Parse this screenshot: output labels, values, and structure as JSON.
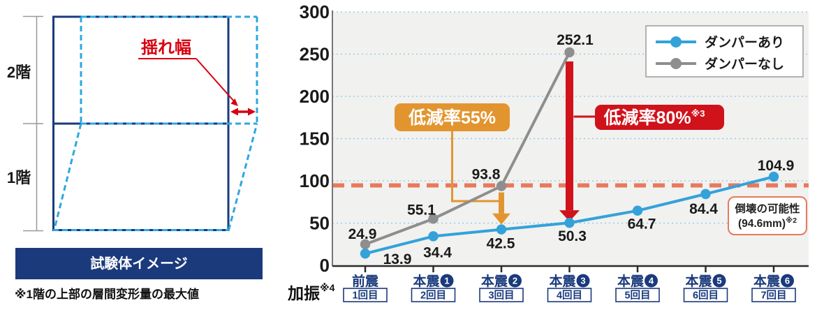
{
  "diagram": {
    "floor2_label": "2階",
    "floor1_label": "1階",
    "sway_label": "揺れ幅",
    "caption": "試験体イメージ",
    "note": "※1階の上部の層間変形量の最大値",
    "colors": {
      "navy": "#1a3a7c",
      "deformed_blue": "#2ea7e0",
      "red": "#d7000f"
    }
  },
  "chart_data": {
    "type": "line",
    "title": "",
    "ylim": [
      0,
      300
    ],
    "yticks": [
      0,
      50,
      100,
      150,
      200,
      250,
      300
    ],
    "grid": "horizontal dotted blue lines",
    "legend_position": "top-right",
    "x_prefix": {
      "label": "加振",
      "sup": "※4"
    },
    "categories": [
      {
        "main": "前震",
        "num": "",
        "sub": "1回目"
      },
      {
        "main": "本震",
        "num": "1",
        "sub": "2回目"
      },
      {
        "main": "本震",
        "num": "2",
        "sub": "3回目"
      },
      {
        "main": "本震",
        "num": "3",
        "sub": "4回目"
      },
      {
        "main": "本震",
        "num": "4",
        "sub": "5回目"
      },
      {
        "main": "本震",
        "num": "5",
        "sub": "6回目"
      },
      {
        "main": "本震",
        "num": "6",
        "sub": "7回目"
      }
    ],
    "series": [
      {
        "name": "ダンパーあり",
        "color": "#33a2d9",
        "values": [
          13.9,
          34.4,
          42.5,
          50.3,
          64.7,
          84.4,
          104.9
        ],
        "label_offsets": [
          [
            46,
            15
          ],
          [
            6,
            30
          ],
          [
            -1,
            27
          ],
          [
            4,
            26
          ],
          [
            6,
            26
          ],
          [
            -3,
            28
          ],
          [
            3,
            -9
          ]
        ]
      },
      {
        "name": "ダンパーなし",
        "color": "#8e8e8e",
        "values": [
          24.9,
          55.1,
          93.8,
          252.1
        ],
        "label_offsets": [
          [
            -4,
            -8
          ],
          [
            -17,
            -6
          ],
          [
            -22,
            -10
          ],
          [
            8,
            -11
          ]
        ]
      }
    ],
    "threshold": {
      "value": 94.6,
      "color": "#e8795c",
      "box_line1": "倒壊の可能性",
      "box_line2": "(94.6mm)",
      "box_sup": "※2"
    },
    "annotations": [
      {
        "id": "reduction55",
        "text": "低減率55%",
        "sup": "",
        "color": "#e2952f",
        "category_index": 2
      },
      {
        "id": "reduction80",
        "text": "低減率80%",
        "sup": "※3",
        "color": "#d0121b",
        "category_index": 3
      }
    ],
    "axis_text_color": "#1a1a1a",
    "category_text_color": "#1a3a7c"
  }
}
